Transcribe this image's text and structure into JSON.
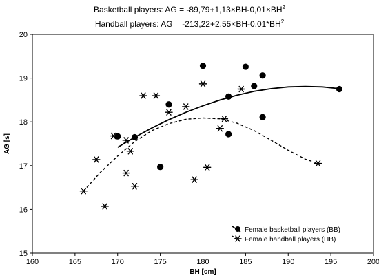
{
  "chart_data": {
    "type": "scatter",
    "title_lines": [
      {
        "text": "Basketball players: AG = -89,79+1,13×BH-0,01×BH",
        "sup": "2"
      },
      {
        "text": "Handball players: AG = -213,22+2,55×BH-0,01*BH",
        "sup": "2"
      }
    ],
    "xlabel": "BH [cm]",
    "ylabel": "AG [s]",
    "xlim": [
      160,
      200
    ],
    "ylim": [
      15,
      20
    ],
    "xticks": [
      "160",
      "165",
      "170",
      "175",
      "180",
      "185",
      "190",
      "195",
      "200"
    ],
    "yticks": [
      "15",
      "16",
      "17",
      "18",
      "19",
      "20"
    ],
    "grid": false,
    "legend_position": "bottom-right",
    "series": [
      {
        "name": "Female basketball players (BB)",
        "marker": "circle",
        "line": "solid",
        "points": [
          [
            170,
            17.67
          ],
          [
            172,
            17.65
          ],
          [
            175,
            16.97
          ],
          [
            176,
            18.4
          ],
          [
            180,
            19.28
          ],
          [
            183,
            18.58
          ],
          [
            183,
            17.72
          ],
          [
            185,
            19.26
          ],
          [
            186,
            18.82
          ],
          [
            187,
            19.06
          ],
          [
            187,
            18.11
          ],
          [
            196,
            18.75
          ]
        ],
        "curve": [
          [
            170,
            17.42
          ],
          [
            172,
            17.65
          ],
          [
            174,
            17.86
          ],
          [
            176,
            18.05
          ],
          [
            178,
            18.22
          ],
          [
            180,
            18.37
          ],
          [
            182,
            18.5
          ],
          [
            184,
            18.61
          ],
          [
            186,
            18.7
          ],
          [
            188,
            18.76
          ],
          [
            190,
            18.8
          ],
          [
            192,
            18.81
          ],
          [
            194,
            18.8
          ],
          [
            196,
            18.76
          ]
        ]
      },
      {
        "name": "Female handball players (HB)",
        "marker": "asterisk",
        "line": "dashed",
        "points": [
          [
            166,
            16.42
          ],
          [
            167.5,
            17.14
          ],
          [
            168.5,
            16.07
          ],
          [
            169.5,
            17.68
          ],
          [
            171,
            16.83
          ],
          [
            171,
            17.58
          ],
          [
            171.5,
            17.33
          ],
          [
            172,
            16.53
          ],
          [
            173,
            18.6
          ],
          [
            174.5,
            18.6
          ],
          [
            176,
            18.22
          ],
          [
            178,
            18.35
          ],
          [
            179,
            16.68
          ],
          [
            180,
            18.87
          ],
          [
            180.5,
            16.96
          ],
          [
            182,
            17.85
          ],
          [
            182.5,
            18.07
          ],
          [
            184.5,
            18.75
          ],
          [
            193.5,
            17.05
          ]
        ],
        "curve": [
          [
            166,
            16.42
          ],
          [
            168,
            16.85
          ],
          [
            170,
            17.22
          ],
          [
            172,
            17.55
          ],
          [
            174,
            17.8
          ],
          [
            176,
            17.96
          ],
          [
            178,
            18.06
          ],
          [
            180,
            18.09
          ],
          [
            182,
            18.07
          ],
          [
            184,
            17.97
          ],
          [
            186,
            17.8
          ],
          [
            188,
            17.58
          ],
          [
            190,
            17.35
          ],
          [
            192,
            17.15
          ],
          [
            193.5,
            17.05
          ]
        ]
      }
    ]
  }
}
